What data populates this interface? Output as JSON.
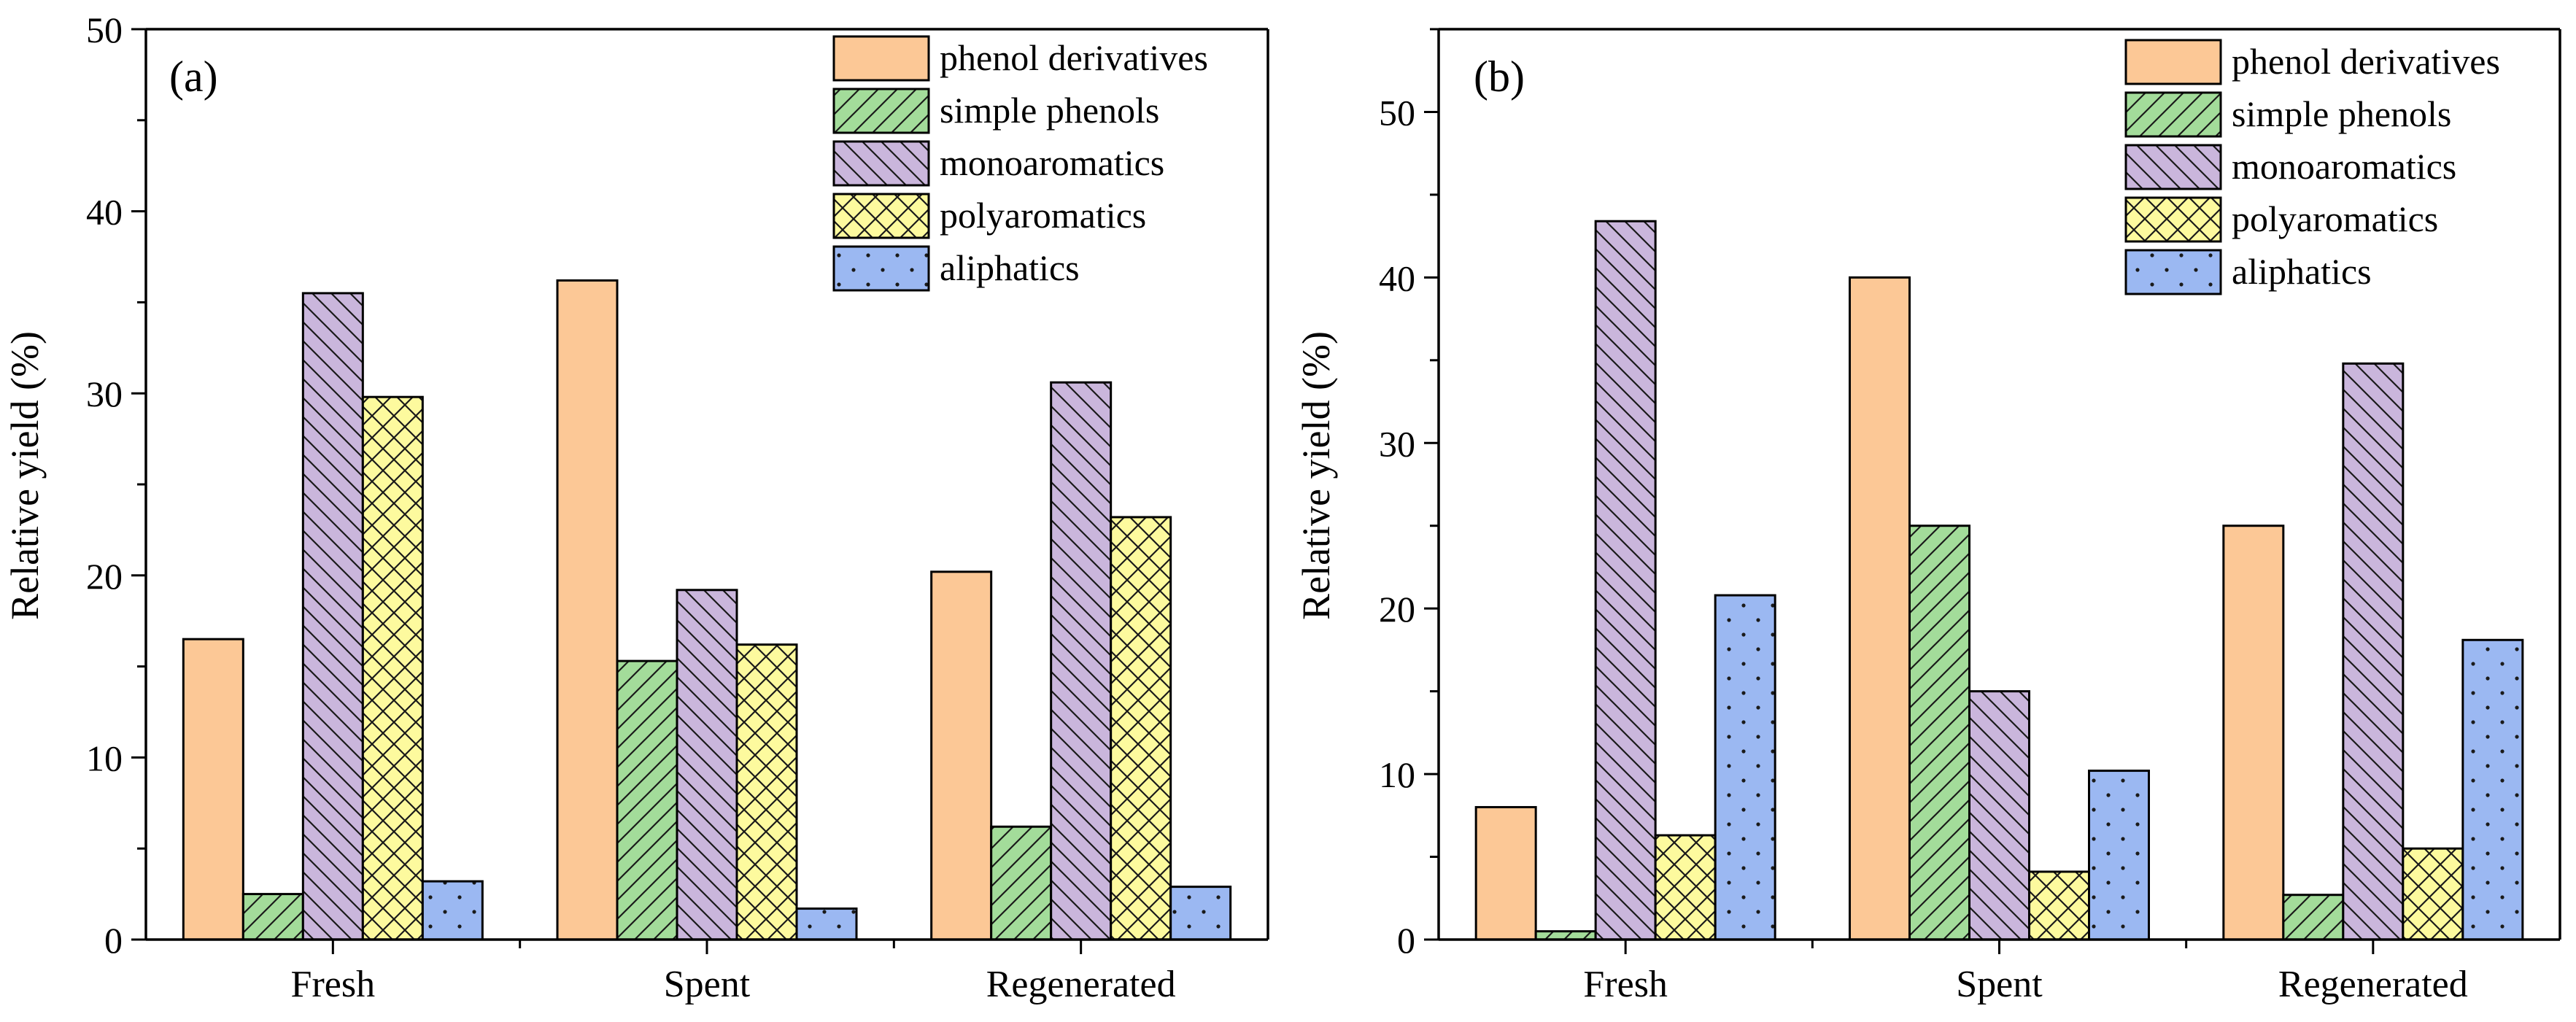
{
  "colors": {
    "phenol_derivatives": "#FCC896",
    "simple_phenols": "#A3DC9A",
    "monoaromatics": "#CAB6DC",
    "polyaromatics": "#FDFA9E",
    "aliphatics": "#9BB8F2",
    "axis": "#000000"
  },
  "chart_data": [
    {
      "type": "bar",
      "panel_label": "(a)",
      "title": "",
      "xlabel": "",
      "ylabel": "Relative yield (%)",
      "ylim": [
        0,
        50
      ],
      "yticks": [
        0,
        10,
        20,
        30,
        40,
        50
      ],
      "categories": [
        "Fresh",
        "Spent",
        "Regenerated"
      ],
      "legend_position": "top-right",
      "series": [
        {
          "name": "phenol derivatives",
          "pattern": "none",
          "values": [
            16.5,
            36.2,
            20.2
          ]
        },
        {
          "name": "simple phenols",
          "pattern": "diagonal-forward",
          "values": [
            2.5,
            15.3,
            6.2
          ]
        },
        {
          "name": "monoaromatics",
          "pattern": "diagonal-back",
          "values": [
            35.5,
            19.2,
            30.6
          ]
        },
        {
          "name": "polyaromatics",
          "pattern": "crosshatch",
          "values": [
            29.8,
            16.2,
            23.2
          ]
        },
        {
          "name": "aliphatics",
          "pattern": "dots",
          "values": [
            3.2,
            1.7,
            2.9
          ]
        }
      ]
    },
    {
      "type": "bar",
      "panel_label": "(b)",
      "title": "",
      "xlabel": "",
      "ylabel": "Relative yield (%)",
      "ylim": [
        0,
        55
      ],
      "yticks": [
        0,
        10,
        20,
        30,
        40,
        50
      ],
      "categories": [
        "Fresh",
        "Spent",
        "Regenerated"
      ],
      "legend_position": "top-right",
      "series": [
        {
          "name": "phenol derivatives",
          "pattern": "none",
          "values": [
            8.0,
            40.0,
            25.0
          ]
        },
        {
          "name": "simple phenols",
          "pattern": "diagonal-forward",
          "values": [
            0.5,
            25.0,
            2.7
          ]
        },
        {
          "name": "monoaromatics",
          "pattern": "diagonal-back",
          "values": [
            43.4,
            15.0,
            34.8
          ]
        },
        {
          "name": "polyaromatics",
          "pattern": "crosshatch",
          "values": [
            6.3,
            4.1,
            5.5
          ]
        },
        {
          "name": "aliphatics",
          "pattern": "dots",
          "values": [
            20.8,
            10.2,
            18.1
          ]
        }
      ]
    }
  ]
}
